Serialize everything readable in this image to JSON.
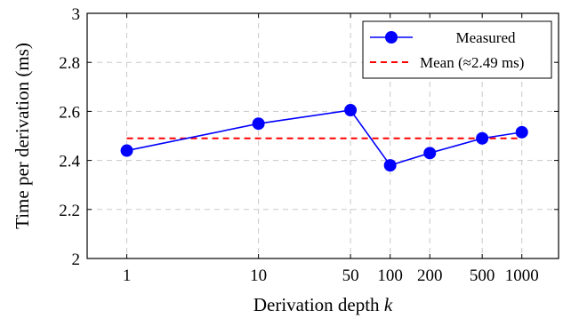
{
  "chart_data": {
    "type": "line",
    "xlabel": "Derivation depth k",
    "ylabel": "Time per derivation (ms)",
    "xscale": "log",
    "ylim": [
      2,
      3
    ],
    "xticks": [
      1,
      10,
      50,
      100,
      200,
      500,
      1000
    ],
    "xtick_labels": [
      "1",
      "10",
      "50",
      "100",
      "200",
      "500",
      "1000"
    ],
    "yticks": [
      2,
      2.2,
      2.4,
      2.6,
      2.8,
      3
    ],
    "ytick_labels": [
      "2",
      "2.2",
      "2.4",
      "2.6",
      "2.8",
      "3"
    ],
    "grid": true,
    "legend_position": "top-right",
    "series": [
      {
        "name": "Measured",
        "color": "#0000ff",
        "marker": "circle",
        "x": [
          1,
          10,
          50,
          100,
          200,
          500,
          1000
        ],
        "y": [
          2.44,
          2.55,
          2.605,
          2.38,
          2.43,
          2.49,
          2.515
        ]
      }
    ],
    "reference_line": {
      "name": "Mean (≈2.49 ms)",
      "y": 2.49,
      "color": "#ff0000",
      "style": "dashed"
    }
  }
}
